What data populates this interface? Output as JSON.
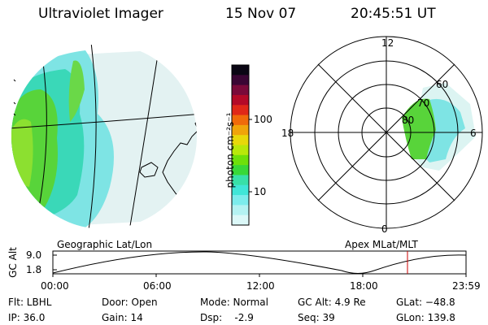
{
  "header": {
    "instrument": "Ultraviolet Imager",
    "date": "15 Nov 07",
    "time": "20:45:51 UT"
  },
  "colorbar": {
    "unit_label": "photon cm⁻²s⁻¹",
    "ticks": [
      "100",
      "10"
    ],
    "scale": "log",
    "colors": [
      "#0a0614",
      "#3a0634",
      "#7a0a3a",
      "#b40a28",
      "#e02818",
      "#f06a0a",
      "#f0a40a",
      "#e8d80a",
      "#b8e80a",
      "#6ee00a",
      "#38d838",
      "#38e0a8",
      "#40e6d8",
      "#7cecec",
      "#b4f2f2",
      "#dcf8f8"
    ]
  },
  "left_panel": {
    "label": "Geographic Lat/Lon"
  },
  "right_panel": {
    "label": "Apex MLat/MLT",
    "mlt_labels": {
      "top": "12",
      "left": "18",
      "right": "6",
      "bottom": "0"
    },
    "mlat_labels": [
      "60",
      "70",
      "80"
    ]
  },
  "altitude_plot": {
    "ylabel": "GC Alt",
    "yticks": [
      "9.0",
      "1.8"
    ],
    "xticks": [
      "00:00",
      "06:00",
      "12:00",
      "18:00",
      "23:59"
    ],
    "marker_time": "20:45:51",
    "marker_color": "#cc0000"
  },
  "info": {
    "flt": "Flt: LBHL",
    "ip": "IP: 36.0",
    "door": "Door: Open",
    "gain": "Gain: 14",
    "mode": "Mode: Normal",
    "dsp": "Dsp:    -2.9",
    "gcalt": "GC Alt: 4.9 Re",
    "seq": "Seq: 39",
    "glat": "GLat: −48.8",
    "glon": "GLon: 139.8"
  }
}
